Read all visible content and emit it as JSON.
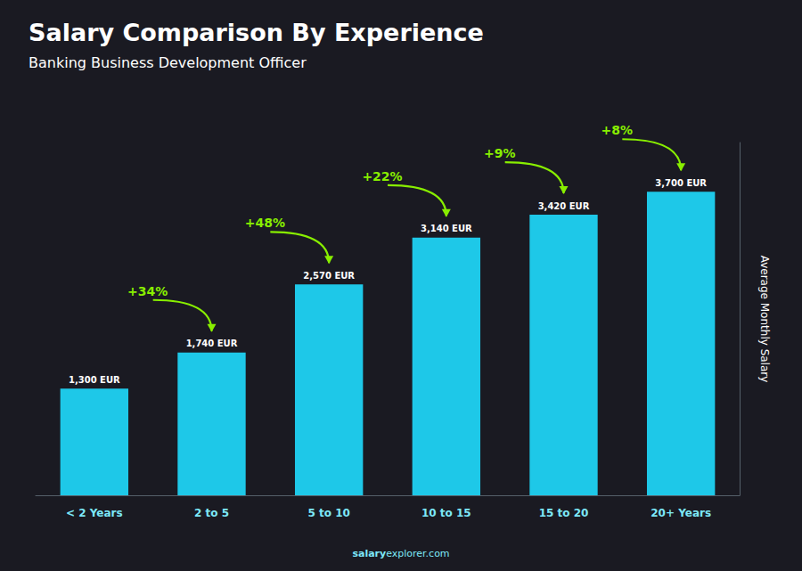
{
  "chart_data": {
    "type": "bar",
    "title": "Salary Comparison By Experience",
    "subtitle": "Banking Business Development Officer",
    "ylabel": "Average Monthly Salary",
    "categories": [
      "< 2 Years",
      "2 to 5",
      "5 to 10",
      "10 to 15",
      "15 to 20",
      "20+ Years"
    ],
    "values": [
      1300,
      1740,
      2570,
      3140,
      3420,
      3700
    ],
    "value_labels": [
      "1,300 EUR",
      "1,740 EUR",
      "2,570 EUR",
      "3,140 EUR",
      "3,420 EUR",
      "3,700 EUR"
    ],
    "data_labels": true,
    "annotations": [
      "+34%",
      "+48%",
      "+22%",
      "+9%",
      "+8%"
    ],
    "footer": [
      "salary",
      "explorer.com"
    ],
    "color": "#1ec8e8",
    "ylim": [
      0,
      4300
    ],
    "grid": false,
    "tick_labels": "x"
  }
}
